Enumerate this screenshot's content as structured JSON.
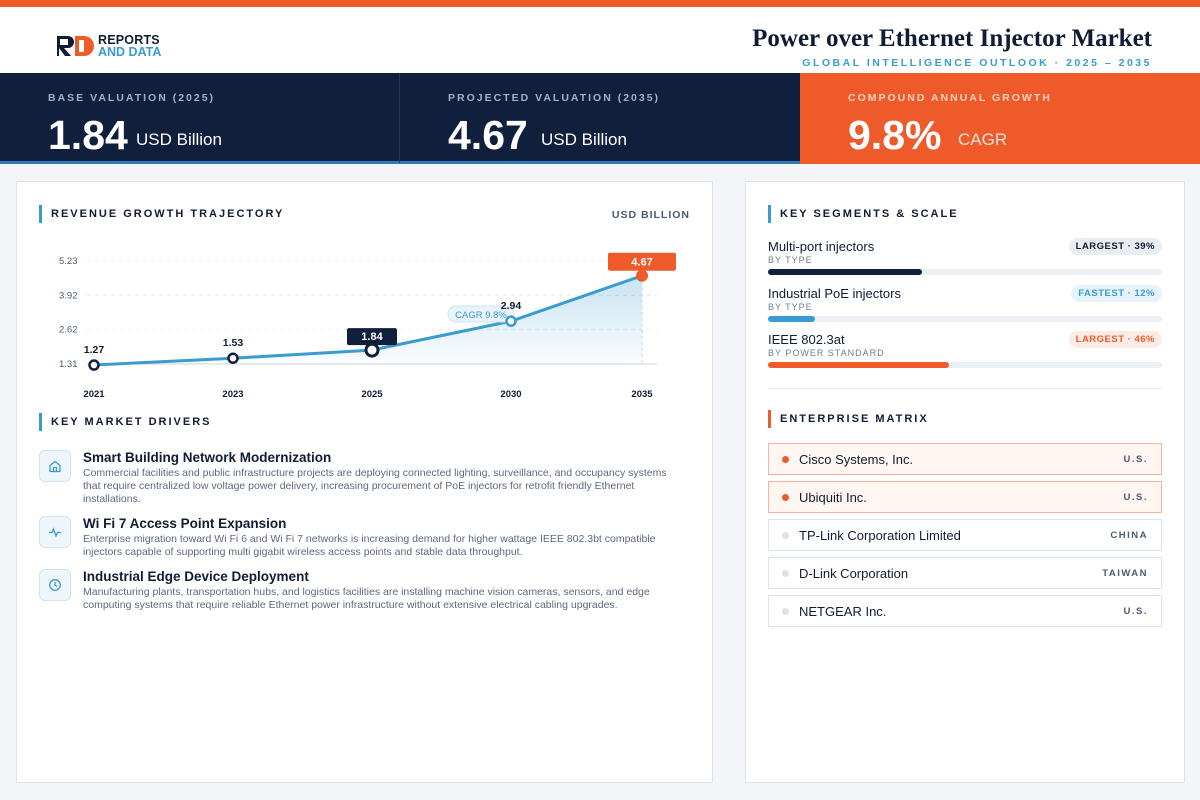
{
  "header": {
    "brand_line1": "REPORTS",
    "brand_line2": "AND DATA",
    "title": "Power over Ethernet Injector Market",
    "subtitle": "GLOBAL INTELLIGENCE OUTLOOK  ·  2025 – 2035"
  },
  "kpis": [
    {
      "label": "BASE VALUATION (2025)",
      "value": "1.84",
      "unit": "USD Billion"
    },
    {
      "label": "PROJECTED VALUATION (2035)",
      "value": "4.67",
      "unit": "USD Billion"
    },
    {
      "label": "COMPOUND ANNUAL GROWTH",
      "value": "9.8%",
      "unit": "CAGR"
    }
  ],
  "trajectory": {
    "section_title": "REVENUE GROWTH TRAJECTORY",
    "unit_label": "USD BILLION",
    "cagr_label": "CAGR 9.8%"
  },
  "chart_data": {
    "type": "area",
    "x": [
      "2021",
      "2023",
      "2025",
      "2030",
      "2035"
    ],
    "values": [
      1.27,
      1.53,
      1.84,
      2.94,
      4.67
    ],
    "y_ticks": [
      1.31,
      2.62,
      3.92,
      5.23
    ],
    "ylim": [
      1.31,
      5.23
    ],
    "highlight": {
      "base": "2025",
      "projected": "2035"
    },
    "colors": {
      "line": "#3a9bd0",
      "highlight": "#ef5a2a",
      "base": "#0f1f3c"
    }
  },
  "drivers": {
    "section_title": "KEY MARKET DRIVERS",
    "items": [
      {
        "icon": "building-icon",
        "title": "Smart Building Network Modernization",
        "desc": "Commercial facilities and public infrastructure projects are deploying connected lighting, surveillance, and occupancy systems that require centralized low voltage power delivery, increasing procurement of PoE injectors for retrofit friendly Ethernet installations."
      },
      {
        "icon": "pulse-icon",
        "title": "Wi Fi 7 Access Point Expansion",
        "desc": "Enterprise migration toward Wi Fi 6 and Wi Fi 7 networks is increasing demand for higher wattage IEEE 802.3bt compatible injectors capable of supporting multi gigabit wireless access points and stable data throughput."
      },
      {
        "icon": "clock-icon",
        "title": "Industrial Edge Device Deployment",
        "desc": "Manufacturing plants, transportation hubs, and logistics facilities are installing machine vision cameras, sensors, and edge computing systems that require reliable Ethernet power infrastructure without extensive electrical cabling upgrades."
      }
    ]
  },
  "segments": {
    "section_title": "KEY SEGMENTS & SCALE",
    "items": [
      {
        "name": "Multi-port injectors",
        "sub": "BY TYPE",
        "badge": "LARGEST · 39%",
        "share": 0.39,
        "color": "#0f1f3c",
        "badge_bg": "#e9ecf1",
        "badge_fg": "#0f1c33"
      },
      {
        "name": "Industrial PoE injectors",
        "sub": "BY TYPE",
        "badge": "FASTEST · 12%",
        "share": 0.12,
        "color": "#3a9bd0",
        "badge_bg": "#e6f3fb",
        "badge_fg": "#3a9bd0"
      },
      {
        "name": "IEEE 802.3at",
        "sub": "BY POWER STANDARD",
        "badge": "LARGEST · 46%",
        "share": 0.46,
        "color": "#ef5a2a",
        "badge_bg": "#fdece5",
        "badge_fg": "#ef5a2a"
      }
    ]
  },
  "enterprise": {
    "section_title": "ENTERPRISE MATRIX",
    "items": [
      {
        "name": "Cisco Systems, Inc.",
        "country": "U.S.",
        "highlight": true
      },
      {
        "name": "Ubiquiti Inc.",
        "country": "U.S.",
        "highlight": true
      },
      {
        "name": "TP-Link Corporation Limited",
        "country": "CHINA",
        "highlight": false
      },
      {
        "name": "D-Link Corporation",
        "country": "TAIWAN",
        "highlight": false
      },
      {
        "name": "NETGEAR Inc.",
        "country": "U.S.",
        "highlight": false
      }
    ]
  }
}
